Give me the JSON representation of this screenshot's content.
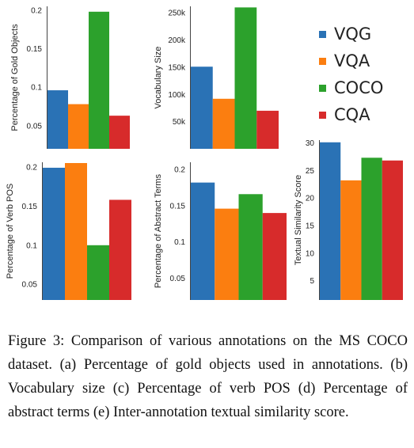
{
  "legend": {
    "items": [
      {
        "label": "VQG",
        "color": "#2a72b5"
      },
      {
        "label": "VQA",
        "color": "#fb7e10"
      },
      {
        "label": "COCO",
        "color": "#2ca12c"
      },
      {
        "label": "CQA",
        "color": "#d72b2b"
      }
    ]
  },
  "caption": {
    "text": "Figure 3: Comparison of various annotations on the MS COCO dataset. (a) Percentage of gold objects used in annotations. (b) Vocabulary size (c) Percentage of verb POS (d) Percentage of abstract terms (e) Inter-annotation textual similarity score."
  },
  "chart_data": [
    {
      "type": "bar",
      "categories": [
        "VQG",
        "VQA",
        "COCO",
        "CQA"
      ],
      "values": [
        0.096,
        0.078,
        0.198,
        0.063
      ],
      "ylabel": "Percentage of Gold Objects",
      "yticks": [
        0.05,
        0.1,
        0.15,
        0.2
      ],
      "tick_labels": [
        "0.05",
        "0.1",
        "0.15",
        "0.2"
      ],
      "ylim": [
        0.02,
        0.205
      ]
    },
    {
      "type": "bar",
      "categories": [
        "VQG",
        "VQA",
        "COCO",
        "CQA"
      ],
      "values": [
        151000,
        92000,
        260000,
        70000
      ],
      "ylabel": "Vocabulary Size",
      "yticks": [
        50000,
        100000,
        150000,
        200000,
        250000
      ],
      "tick_labels": [
        "50k",
        "100k",
        "150k",
        "200k",
        "250k"
      ],
      "ylim": [
        0,
        262000
      ]
    },
    {
      "type": "bar",
      "categories": [
        "VQG",
        "VQA",
        "COCO",
        "CQA"
      ],
      "values": [
        0.199,
        0.205,
        0.1,
        0.158
      ],
      "ylabel": "Percentage of Verb POS",
      "yticks": [
        0.05,
        0.1,
        0.15,
        0.2
      ],
      "tick_labels": [
        "0.05",
        "0.1",
        "0.15",
        "0.2"
      ],
      "ylim": [
        0.03,
        0.206
      ]
    },
    {
      "type": "bar",
      "categories": [
        "VQG",
        "VQA",
        "COCO",
        "CQA"
      ],
      "values": [
        0.182,
        0.146,
        0.166,
        0.14
      ],
      "ylabel": "Percentage of Abstract Terms",
      "yticks": [
        0.05,
        0.1,
        0.15,
        0.2
      ],
      "tick_labels": [
        "0.05",
        "0.1",
        "0.15",
        "0.2"
      ],
      "ylim": [
        0.02,
        0.21
      ]
    },
    {
      "type": "bar",
      "categories": [
        "VQG",
        "VQA",
        "COCO",
        "CQA"
      ],
      "values": [
        30.1,
        23.2,
        27.3,
        26.8
      ],
      "ylabel": "Textual Similarity Score",
      "yticks": [
        5,
        10,
        15,
        20,
        25,
        30
      ],
      "tick_labels": [
        "5",
        "10",
        "15",
        "20",
        "25",
        "30"
      ],
      "ylim": [
        1.5,
        30.5
      ]
    }
  ]
}
